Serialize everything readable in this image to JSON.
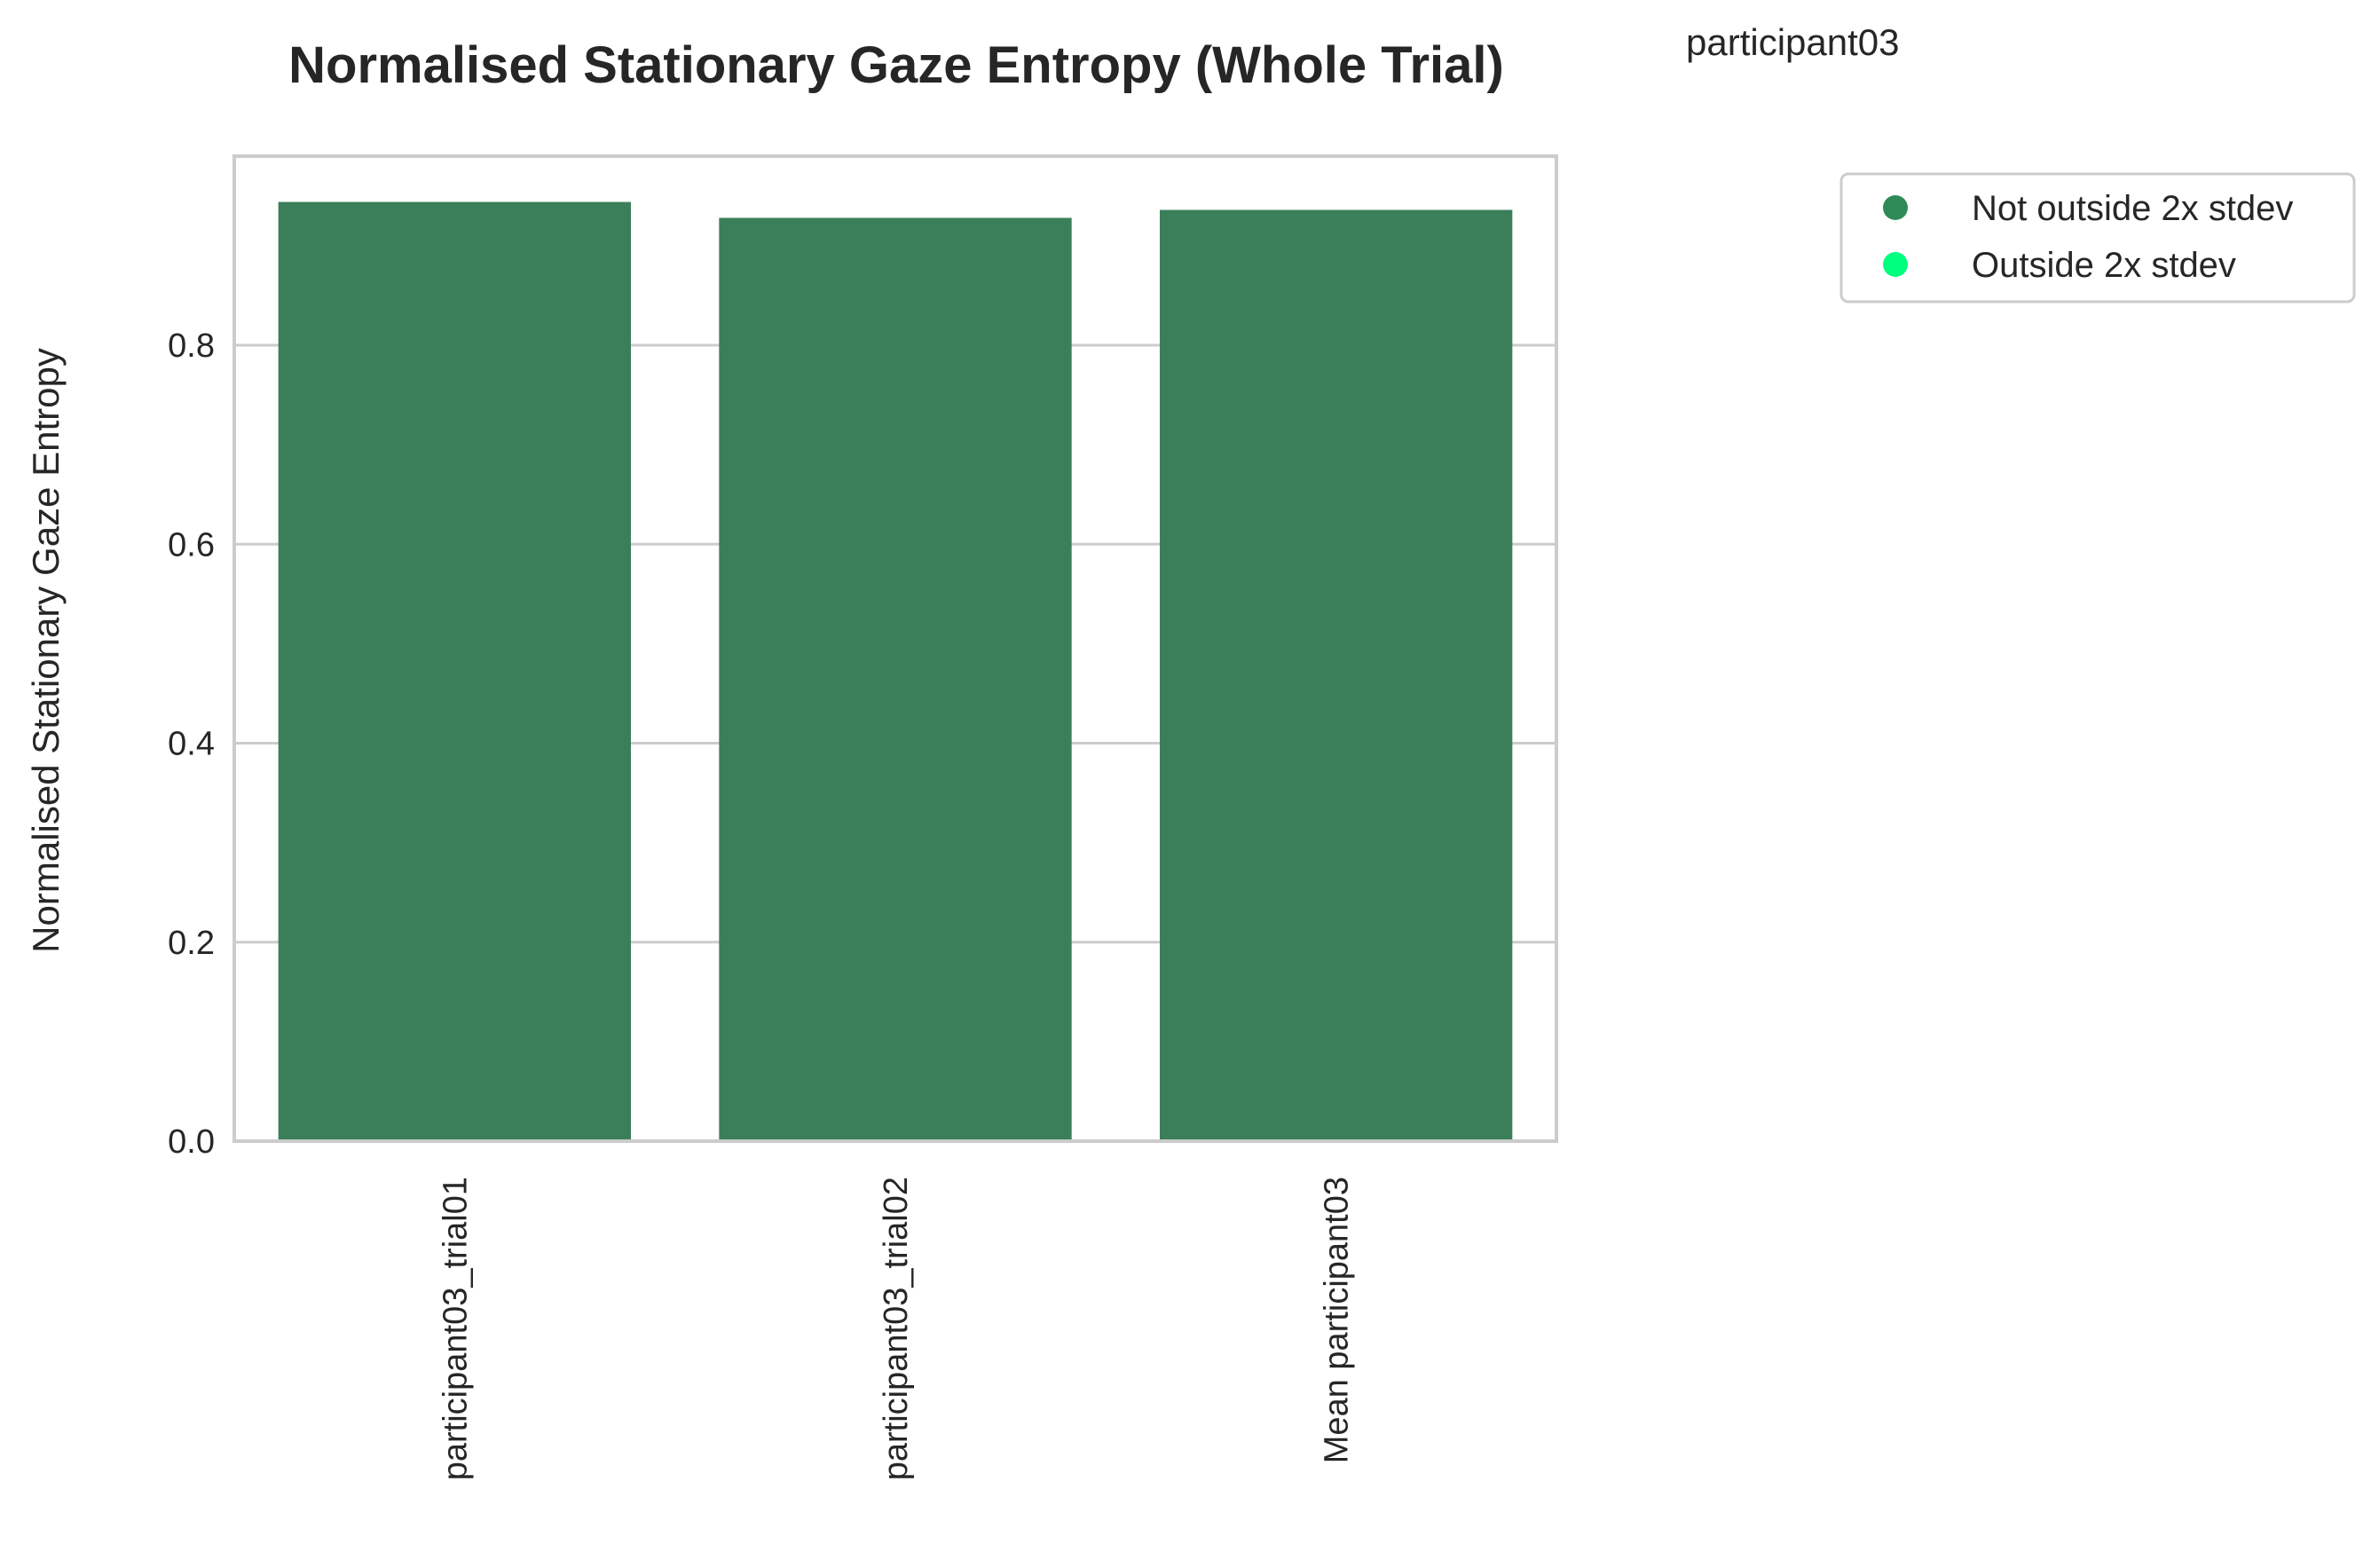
{
  "chart_data": {
    "type": "bar",
    "title": "Normalised Stationary Gaze Entropy (Whole Trial)",
    "subtitle": "participant03",
    "ylabel": "Normalised Stationary Gaze Entropy",
    "xlabel": "",
    "categories": [
      "participant03_trial01",
      "participant03_trial02",
      "Mean participant03"
    ],
    "values": [
      0.944,
      0.928,
      0.936
    ],
    "bar_status": [
      "Not outside 2x stdev",
      "Not outside 2x stdev",
      "Not outside 2x stdev"
    ],
    "ylim": [
      0,
      0.99
    ],
    "yticks": [
      0.0,
      0.2,
      0.4,
      0.6,
      0.8
    ],
    "ytick_labels": [
      "0.0",
      "0.2",
      "0.4",
      "0.6",
      "0.8"
    ],
    "grid": "horizontal",
    "legend": {
      "placement": "outside-upper-right",
      "entries": [
        {
          "label": "Not outside 2x stdev",
          "color": "#2e8b57"
        },
        {
          "label": "Outside 2x stdev",
          "color": "#00ff7f"
        }
      ]
    },
    "colors": {
      "bar": "#3b7f5a",
      "grid": "#cccccc",
      "frame": "#cccccc"
    }
  }
}
